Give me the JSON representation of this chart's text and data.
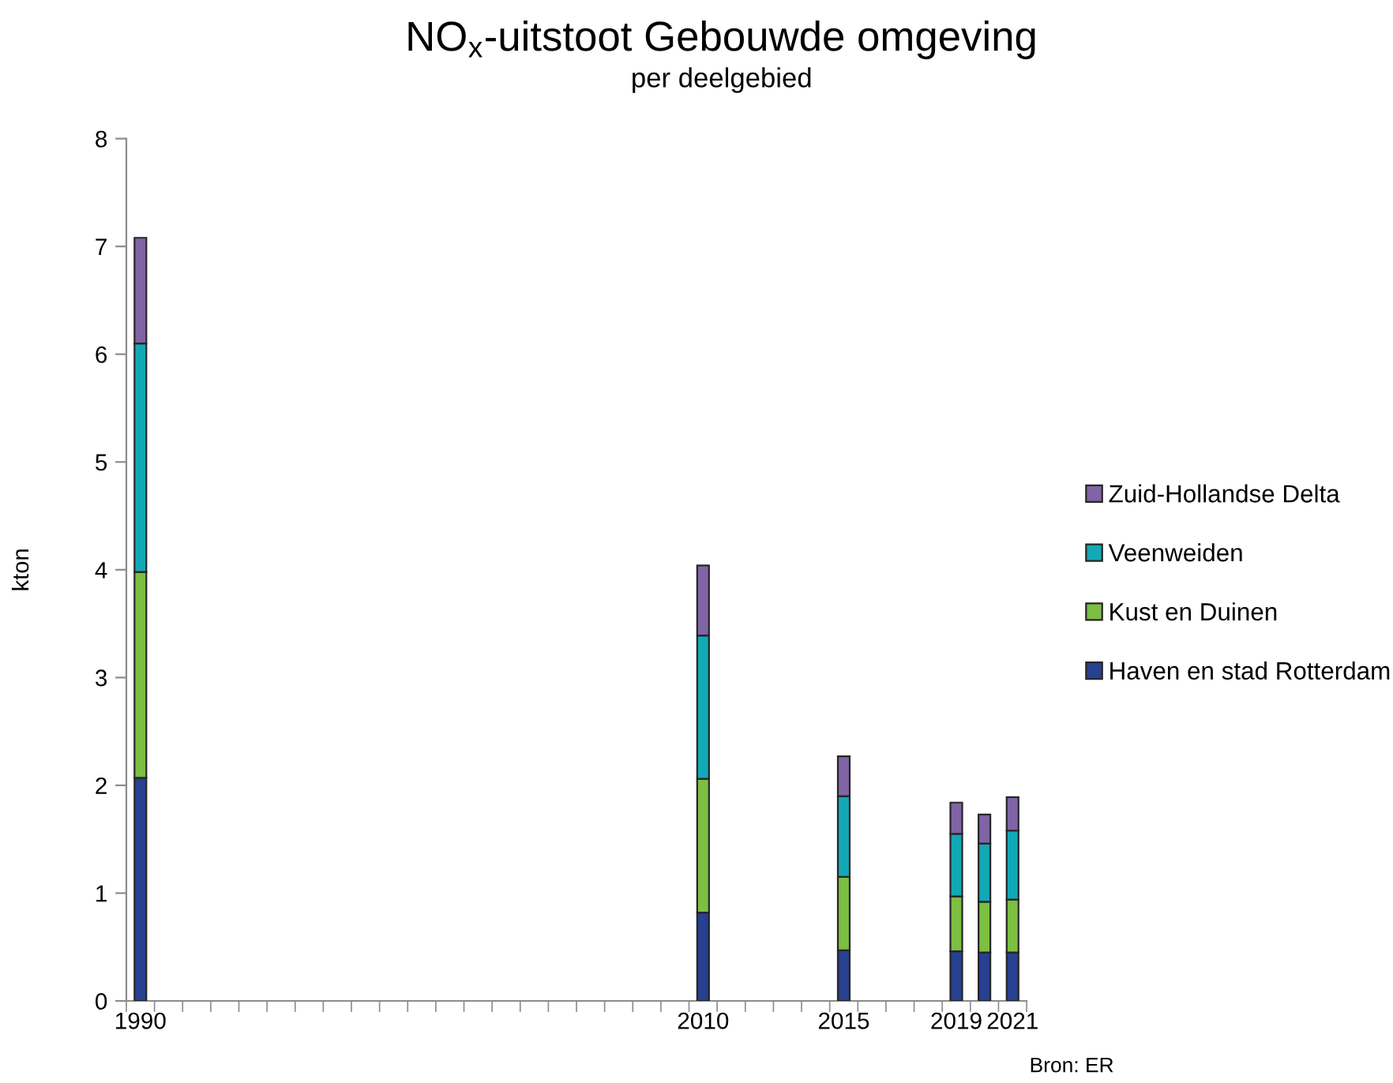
{
  "chart_data": {
    "type": "bar",
    "title": "NO$_{x}$-uitstoot Gebouwde omgeving",
    "subtitle": "per deelgebied",
    "ylabel": "kton",
    "annotations": [
      "Bron: ER"
    ],
    "categories": [
      "1990",
      null,
      null,
      null,
      null,
      null,
      null,
      null,
      null,
      null,
      null,
      null,
      null,
      null,
      null,
      null,
      null,
      null,
      null,
      null,
      "2010",
      null,
      null,
      null,
      null,
      "2015",
      null,
      null,
      null,
      "2019",
      null,
      "2021"
    ],
    "stacked": true,
    "ylim": [
      0,
      8
    ],
    "yticks": [
      0,
      1,
      2,
      3,
      4,
      5,
      6,
      7,
      8
    ],
    "legend": "right",
    "series": [
      {
        "name": "Haven en stad Rotterdam",
        "color": "#27408f",
        "values": [
          2.07,
          null,
          null,
          null,
          null,
          null,
          null,
          null,
          null,
          null,
          null,
          null,
          null,
          null,
          null,
          null,
          null,
          null,
          null,
          null,
          0.82,
          null,
          null,
          null,
          null,
          0.47,
          null,
          null,
          null,
          0.46,
          0.45,
          0.45
        ]
      },
      {
        "name": "Kust en Duinen",
        "color": "#7cbf43",
        "values": [
          1.91,
          null,
          null,
          null,
          null,
          null,
          null,
          null,
          null,
          null,
          null,
          null,
          null,
          null,
          null,
          null,
          null,
          null,
          null,
          null,
          1.24,
          null,
          null,
          null,
          null,
          0.68,
          null,
          null,
          null,
          0.51,
          0.47,
          0.49
        ]
      },
      {
        "name": "Veenweiden",
        "color": "#12a9b6",
        "values": [
          2.12,
          null,
          null,
          null,
          null,
          null,
          null,
          null,
          null,
          null,
          null,
          null,
          null,
          null,
          null,
          null,
          null,
          null,
          null,
          null,
          1.33,
          null,
          null,
          null,
          null,
          0.75,
          null,
          null,
          null,
          0.58,
          0.54,
          0.64
        ]
      },
      {
        "name": "Zuid-Hollandse Delta",
        "color": "#8064a6",
        "values": [
          0.98,
          null,
          null,
          null,
          null,
          null,
          null,
          null,
          null,
          null,
          null,
          null,
          null,
          null,
          null,
          null,
          null,
          null,
          null,
          null,
          0.65,
          null,
          null,
          null,
          null,
          0.37,
          null,
          null,
          null,
          0.29,
          0.27,
          0.31
        ]
      }
    ]
  }
}
